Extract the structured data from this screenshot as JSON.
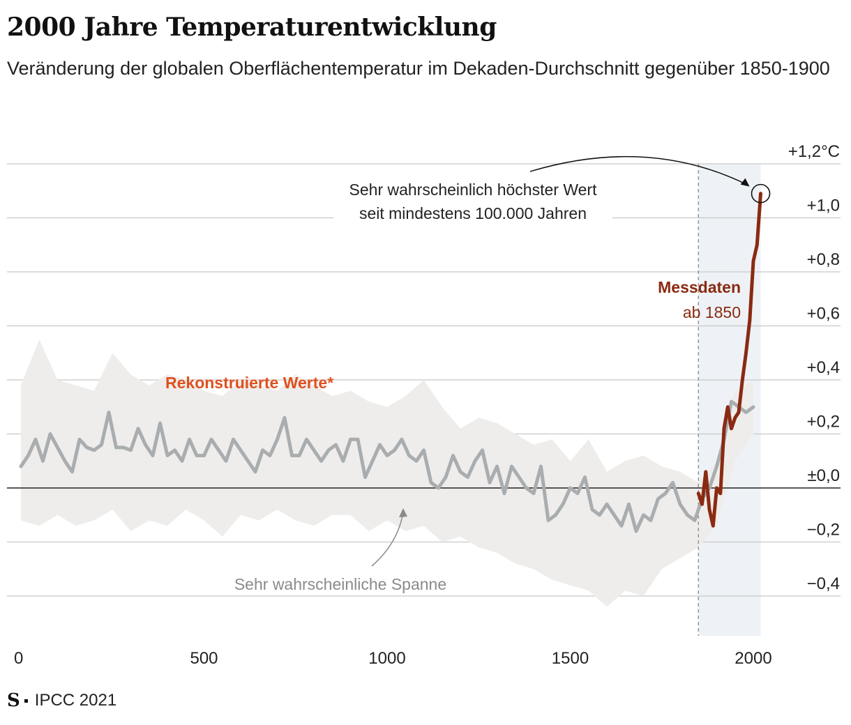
{
  "header": {
    "title": "2000 Jahre Temperaturentwicklung",
    "subtitle": "Veränderung der globalen Oberflächentemperatur im Dekaden-Durchschnitt gegenüber 1850-1900"
  },
  "footer": {
    "logo": "S",
    "source": "IPCC 2021"
  },
  "colors": {
    "reconstructed_line": "#a9adb0",
    "range_band": "#efedeb",
    "measured_line": "#8a2a12",
    "reconstructed_label": "#e0501f",
    "measured_label": "#8a2a12",
    "highlight_band": "#eef2f6",
    "grid": "#c8c8c8",
    "zero_line": "#222222"
  },
  "chart_data": {
    "type": "line",
    "title": "2000 Jahre Temperaturentwicklung",
    "xlabel": "",
    "ylabel": "°C",
    "xlim": [
      0,
      2020
    ],
    "ylim": [
      -0.5,
      1.2
    ],
    "x_ticks": [
      {
        "value": 0,
        "label": "0"
      },
      {
        "value": 500,
        "label": "500"
      },
      {
        "value": 1000,
        "label": "1000"
      },
      {
        "value": 1500,
        "label": "1500"
      },
      {
        "value": 2000,
        "label": "2000"
      }
    ],
    "y_ticks": [
      {
        "value": 1.2,
        "label": "+1,2°C"
      },
      {
        "value": 1.0,
        "label": "+1,0"
      },
      {
        "value": 0.8,
        "label": "+0,8"
      },
      {
        "value": 0.6,
        "label": "+0,6"
      },
      {
        "value": 0.4,
        "label": "+0,4"
      },
      {
        "value": 0.2,
        "label": "+0,2"
      },
      {
        "value": 0.0,
        "label": "±0,0"
      },
      {
        "value": -0.2,
        "label": "−0,2"
      },
      {
        "value": -0.4,
        "label": "−0,4"
      }
    ],
    "highlight_range": [
      1850,
      2020
    ],
    "series": [
      {
        "name": "Rekonstruierte Werte*",
        "x": [
          0,
          20,
          40,
          60,
          80,
          100,
          120,
          140,
          160,
          180,
          200,
          220,
          240,
          260,
          280,
          300,
          320,
          340,
          360,
          380,
          400,
          420,
          440,
          460,
          480,
          500,
          520,
          540,
          560,
          580,
          600,
          620,
          640,
          660,
          680,
          700,
          720,
          740,
          760,
          780,
          800,
          820,
          840,
          860,
          880,
          900,
          920,
          940,
          960,
          980,
          1000,
          1020,
          1040,
          1060,
          1080,
          1100,
          1120,
          1140,
          1160,
          1180,
          1200,
          1220,
          1240,
          1260,
          1280,
          1300,
          1320,
          1340,
          1360,
          1380,
          1400,
          1420,
          1440,
          1460,
          1480,
          1500,
          1520,
          1540,
          1560,
          1580,
          1600,
          1620,
          1640,
          1660,
          1680,
          1700,
          1720,
          1740,
          1760,
          1780,
          1800,
          1820,
          1840,
          1860,
          1880,
          1900,
          1920,
          1940,
          1960,
          1980,
          2000
        ],
        "values": [
          0.08,
          0.12,
          0.18,
          0.1,
          0.2,
          0.15,
          0.1,
          0.06,
          0.18,
          0.15,
          0.14,
          0.16,
          0.28,
          0.15,
          0.15,
          0.14,
          0.22,
          0.16,
          0.12,
          0.24,
          0.12,
          0.14,
          0.1,
          0.18,
          0.12,
          0.12,
          0.18,
          0.14,
          0.1,
          0.18,
          0.14,
          0.1,
          0.06,
          0.14,
          0.12,
          0.18,
          0.26,
          0.12,
          0.12,
          0.18,
          0.14,
          0.1,
          0.14,
          0.16,
          0.1,
          0.18,
          0.18,
          0.04,
          0.1,
          0.16,
          0.12,
          0.14,
          0.18,
          0.12,
          0.1,
          0.14,
          0.02,
          0.0,
          0.04,
          0.12,
          0.06,
          0.04,
          0.1,
          0.14,
          0.02,
          0.08,
          -0.02,
          0.08,
          0.04,
          0.0,
          -0.02,
          0.08,
          -0.12,
          -0.1,
          -0.06,
          0.0,
          -0.02,
          0.04,
          -0.08,
          -0.1,
          -0.06,
          -0.1,
          -0.14,
          -0.06,
          -0.16,
          -0.1,
          -0.12,
          -0.04,
          -0.02,
          0.02,
          -0.06,
          -0.1,
          -0.12,
          -0.04,
          0.0,
          0.08,
          0.18,
          0.32,
          0.3,
          0.28,
          0.3
        ]
      },
      {
        "name": "Sehr wahrscheinliche Spanne (obere Grenze)",
        "x": [
          0,
          50,
          100,
          150,
          200,
          250,
          300,
          350,
          400,
          450,
          500,
          550,
          600,
          650,
          700,
          750,
          800,
          850,
          900,
          950,
          1000,
          1050,
          1100,
          1150,
          1200,
          1250,
          1300,
          1350,
          1400,
          1450,
          1500,
          1550,
          1600,
          1650,
          1700,
          1750,
          1800,
          1850,
          1900,
          1950,
          2000
        ],
        "values": [
          0.38,
          0.55,
          0.4,
          0.38,
          0.36,
          0.5,
          0.42,
          0.38,
          0.42,
          0.4,
          0.36,
          0.34,
          0.4,
          0.38,
          0.36,
          0.42,
          0.38,
          0.34,
          0.36,
          0.32,
          0.3,
          0.34,
          0.4,
          0.3,
          0.22,
          0.26,
          0.24,
          0.2,
          0.16,
          0.18,
          0.1,
          0.18,
          0.06,
          0.1,
          0.12,
          0.08,
          0.06,
          0.02,
          0.1,
          0.36,
          0.4
        ]
      },
      {
        "name": "Sehr wahrscheinliche Spanne (untere Grenze)",
        "x": [
          0,
          50,
          100,
          150,
          200,
          250,
          300,
          350,
          400,
          450,
          500,
          550,
          600,
          650,
          700,
          750,
          800,
          850,
          900,
          950,
          1000,
          1050,
          1100,
          1150,
          1200,
          1250,
          1300,
          1350,
          1400,
          1450,
          1500,
          1550,
          1600,
          1650,
          1700,
          1750,
          1800,
          1850,
          1900,
          1950,
          2000
        ],
        "values": [
          -0.12,
          -0.14,
          -0.1,
          -0.14,
          -0.12,
          -0.08,
          -0.16,
          -0.12,
          -0.14,
          -0.08,
          -0.12,
          -0.18,
          -0.1,
          -0.12,
          -0.08,
          -0.12,
          -0.14,
          -0.1,
          -0.1,
          -0.16,
          -0.12,
          -0.16,
          -0.14,
          -0.2,
          -0.18,
          -0.22,
          -0.24,
          -0.28,
          -0.3,
          -0.34,
          -0.36,
          -0.38,
          -0.44,
          -0.38,
          -0.4,
          -0.3,
          -0.26,
          -0.22,
          -0.14,
          0.1,
          0.2
        ]
      },
      {
        "name": "Messdaten ab 1850",
        "x": [
          1850,
          1860,
          1870,
          1880,
          1890,
          1900,
          1910,
          1920,
          1930,
          1940,
          1950,
          1960,
          1970,
          1980,
          1990,
          2000,
          2010,
          2020
        ],
        "values": [
          -0.02,
          -0.06,
          0.06,
          -0.08,
          -0.14,
          0.0,
          -0.02,
          0.22,
          0.3,
          0.22,
          0.26,
          0.28,
          0.4,
          0.5,
          0.62,
          0.84,
          0.9,
          1.09
        ]
      }
    ],
    "annotations": {
      "reconstructed_label": "Rekonstruierte Werte*",
      "measured_title": "Messdaten",
      "measured_subtitle": "ab 1850",
      "range_label": "Sehr wahrscheinliche Spanne",
      "peak_line1": "Sehr wahrscheinlich höchster Wert",
      "peak_line2": "seit mindestens 100.000 Jahren"
    }
  }
}
